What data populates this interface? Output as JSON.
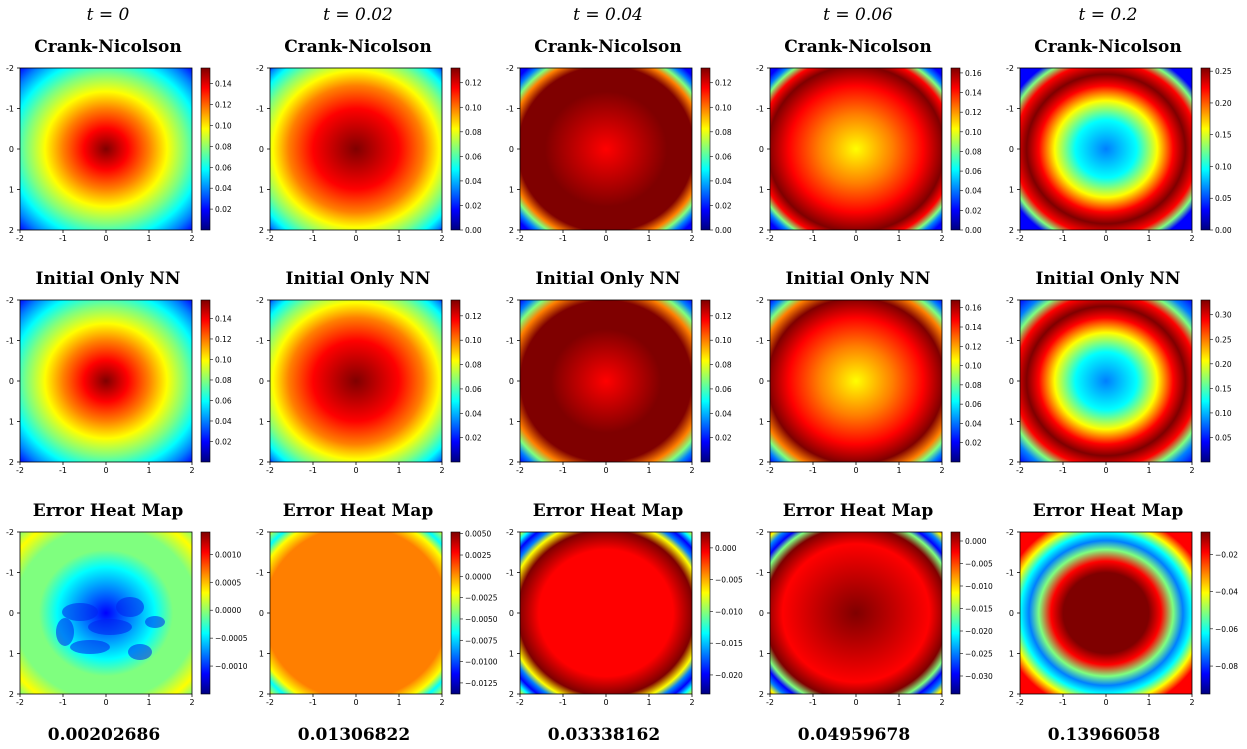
{
  "times": [
    "t = 0",
    "t = 0.02",
    "t = 0.04",
    "t = 0.06",
    "t = 0.2"
  ],
  "row_titles": [
    "Crank-Nicolson",
    "Initial Only NN",
    "Error Heat Map"
  ],
  "errors": [
    "0.00202686",
    "0.01306822",
    "0.03338162",
    "0.04959678",
    "0.13966058"
  ],
  "colormap": [
    "#00007f",
    "#0000ff",
    "#007fff",
    "#00ffff",
    "#7fff7f",
    "#ffff00",
    "#ff7f00",
    "#ff0000",
    "#7f0000"
  ],
  "chart_data": {
    "type": "heatmap",
    "axes": {
      "x_ticks": [
        "-2",
        "-1",
        "0",
        "1",
        "2"
      ],
      "y_ticks": [
        "-2",
        "-1",
        "0",
        "1",
        "2"
      ],
      "xlim": [
        -2,
        2
      ],
      "ylim": [
        -2,
        2
      ]
    },
    "panels": [
      [
        {
          "type": "heatmap",
          "vmin": 0.0,
          "vmax": 0.155,
          "ticks": [
            "0.02",
            "0.04",
            "0.06",
            "0.08",
            "0.10",
            "0.12",
            "0.14"
          ]
        },
        {
          "type": "heatmap",
          "vmin": 0.0,
          "vmax": 0.132,
          "ticks": [
            "0.00",
            "0.02",
            "0.04",
            "0.06",
            "0.08",
            "0.10",
            "0.12"
          ]
        },
        {
          "type": "heatmap",
          "vmin": 0.0,
          "vmax": 0.132,
          "ticks": [
            "0.00",
            "0.02",
            "0.04",
            "0.06",
            "0.08",
            "0.10",
            "0.12"
          ]
        },
        {
          "type": "heatmap",
          "vmin": 0.0,
          "vmax": 0.165,
          "ticks": [
            "0.00",
            "0.02",
            "0.04",
            "0.06",
            "0.08",
            "0.10",
            "0.12",
            "0.14",
            "0.16"
          ]
        },
        {
          "type": "heatmap",
          "vmin": 0.0,
          "vmax": 0.255,
          "ticks": [
            "0.00",
            "0.05",
            "0.10",
            "0.15",
            "0.20",
            "0.25"
          ]
        }
      ],
      [
        {
          "type": "heatmap",
          "vmin": 0.0,
          "vmax": 0.158,
          "ticks": [
            "0.02",
            "0.04",
            "0.06",
            "0.08",
            "0.10",
            "0.12",
            "0.14"
          ]
        },
        {
          "type": "heatmap",
          "vmin": 0.0,
          "vmax": 0.133,
          "ticks": [
            "0.02",
            "0.04",
            "0.06",
            "0.08",
            "0.10",
            "0.12"
          ]
        },
        {
          "type": "heatmap",
          "vmin": 0.0,
          "vmax": 0.133,
          "ticks": [
            "0.02",
            "0.04",
            "0.06",
            "0.08",
            "0.10",
            "0.12"
          ]
        },
        {
          "type": "heatmap",
          "vmin": 0.0,
          "vmax": 0.168,
          "ticks": [
            "0.02",
            "0.04",
            "0.06",
            "0.08",
            "0.10",
            "0.12",
            "0.14",
            "0.16"
          ]
        },
        {
          "type": "heatmap",
          "vmin": 0.0,
          "vmax": 0.33,
          "ticks": [
            "0.05",
            "0.10",
            "0.15",
            "0.20",
            "0.25",
            "0.30"
          ]
        }
      ],
      [
        {
          "type": "heatmap",
          "vmin": -0.0015,
          "vmax": 0.0014,
          "ticks": [
            "0.0010",
            "0.0005",
            "0.0000",
            "−0.0005",
            "−0.0010"
          ]
        },
        {
          "type": "heatmap",
          "vmin": -0.0138,
          "vmax": 0.0052,
          "ticks": [
            "0.0050",
            "0.0025",
            "0.0000",
            "−0.0025",
            "−0.0050",
            "−0.0075",
            "−0.0100",
            "−0.0125"
          ]
        },
        {
          "type": "heatmap",
          "vmin": -0.023,
          "vmax": 0.0025,
          "ticks": [
            "0.000",
            "−0.005",
            "−0.010",
            "−0.015",
            "−0.020"
          ]
        },
        {
          "type": "heatmap",
          "vmin": -0.034,
          "vmax": 0.002,
          "ticks": [
            "0.000",
            "−0.005",
            "−0.010",
            "−0.015",
            "−0.020",
            "−0.025",
            "−0.030"
          ]
        },
        {
          "type": "heatmap",
          "vmin": -0.095,
          "vmax": -0.008,
          "ticks": [
            "−0.02",
            "−0.04",
            "−0.06",
            "−0.08"
          ]
        }
      ]
    ]
  }
}
